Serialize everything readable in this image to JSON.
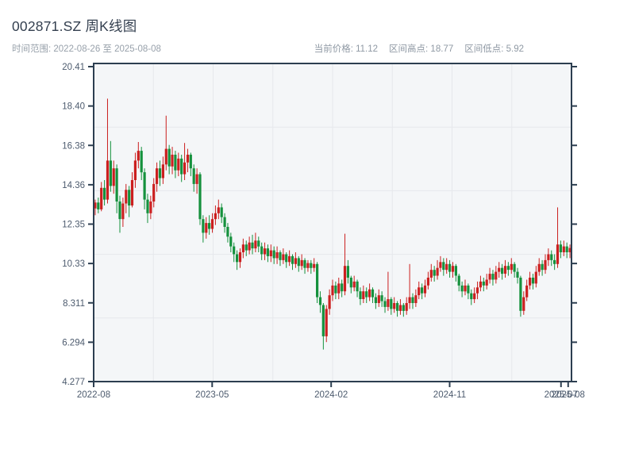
{
  "header": {
    "title": "002871.SZ 周K线图",
    "subtitle": "时间范围: 2022-08-26 至 2025-08-08",
    "stats": [
      "当前价格: 11.12",
      "区间高点: 18.77",
      "区间低点: 5.92"
    ]
  },
  "colors": {
    "up": "#cb1f1f",
    "down": "#15913d",
    "frame": "#2c3e50",
    "plot_bg": "#f4f6f8",
    "grid": "#e6e8ec",
    "tick_text": "#4d5b6e",
    "muted_text": "#98a1ab",
    "title_text": "#333f4f"
  },
  "chart_data": {
    "type": "candlestick",
    "title": "002871.SZ 周K线图",
    "symbol": "002871.SZ",
    "frequency": "weekly",
    "date_range": [
      "2022-08-26",
      "2025-08-08"
    ],
    "current_price": 11.12,
    "range_high": 18.77,
    "range_low": 5.92,
    "y_range": [
      4.277,
      20.41
    ],
    "y_ticks": [
      "20.41",
      "18.40",
      "16.38",
      "14.36",
      "12.35",
      "10.33",
      "8.311",
      "6.294",
      "4.277"
    ],
    "x_ticks": [
      {
        "label": "2022-08",
        "pos": 0.0
      },
      {
        "label": "2023-05",
        "pos": 0.248
      },
      {
        "label": "2024-02",
        "pos": 0.497
      },
      {
        "label": "2024-11",
        "pos": 0.745
      },
      {
        "label": "2025-07",
        "pos": 0.978
      },
      {
        "label": "2025-08",
        "pos": 0.993
      }
    ],
    "grid": {
      "x_divisions": 8,
      "y_divisions": 5
    },
    "legend": "red = up week (close >= open), green = down week",
    "ohlc": [
      [
        13.15,
        13.6,
        12.8,
        13.45
      ],
      [
        13.45,
        13.7,
        12.9,
        13.1
      ],
      [
        13.1,
        14.5,
        13.0,
        14.2
      ],
      [
        14.2,
        14.6,
        13.3,
        13.6
      ],
      [
        13.6,
        18.77,
        13.4,
        15.6
      ],
      [
        15.6,
        16.6,
        14.0,
        14.3
      ],
      [
        14.3,
        15.6,
        13.9,
        15.2
      ],
      [
        15.2,
        15.4,
        12.9,
        13.5
      ],
      [
        13.5,
        13.8,
        11.9,
        12.6
      ],
      [
        12.6,
        13.7,
        12.2,
        13.4
      ],
      [
        13.4,
        14.4,
        12.9,
        14.1
      ],
      [
        14.1,
        14.3,
        12.7,
        13.3
      ],
      [
        13.3,
        15.0,
        13.2,
        14.6
      ],
      [
        14.6,
        16.0,
        14.2,
        15.6
      ],
      [
        15.6,
        16.55,
        15.2,
        16.1
      ],
      [
        16.1,
        16.3,
        14.6,
        15.0
      ],
      [
        15.0,
        15.2,
        13.1,
        13.6
      ],
      [
        13.6,
        13.9,
        12.4,
        12.9
      ],
      [
        12.9,
        13.8,
        12.6,
        13.5
      ],
      [
        13.5,
        14.7,
        13.2,
        14.4
      ],
      [
        14.4,
        15.5,
        14.0,
        15.2
      ],
      [
        15.2,
        15.6,
        14.3,
        14.7
      ],
      [
        14.7,
        15.8,
        14.4,
        15.4
      ],
      [
        15.4,
        17.9,
        15.1,
        16.2
      ],
      [
        16.2,
        16.4,
        14.9,
        15.3
      ],
      [
        15.3,
        16.3,
        14.9,
        15.9
      ],
      [
        15.9,
        16.1,
        14.7,
        15.1
      ],
      [
        15.1,
        16.0,
        14.8,
        15.7
      ],
      [
        15.7,
        15.9,
        14.5,
        14.9
      ],
      [
        14.9,
        16.5,
        14.6,
        15.5
      ],
      [
        15.5,
        16.2,
        15.0,
        15.9
      ],
      [
        15.9,
        16.0,
        14.8,
        15.2
      ],
      [
        15.2,
        15.4,
        14.0,
        14.4
      ],
      [
        14.4,
        15.2,
        13.9,
        14.9
      ],
      [
        14.9,
        15.0,
        12.3,
        12.6
      ],
      [
        12.6,
        12.8,
        11.4,
        11.9
      ],
      [
        11.9,
        12.7,
        11.6,
        12.4
      ],
      [
        12.4,
        12.8,
        11.8,
        12.1
      ],
      [
        12.1,
        12.9,
        11.9,
        12.6
      ],
      [
        12.6,
        13.3,
        12.3,
        12.9
      ],
      [
        12.9,
        13.6,
        12.6,
        13.2
      ],
      [
        13.2,
        13.4,
        12.4,
        12.7
      ],
      [
        12.7,
        12.9,
        11.9,
        12.2
      ],
      [
        12.2,
        12.4,
        11.4,
        11.7
      ],
      [
        11.7,
        11.9,
        10.9,
        11.2
      ],
      [
        11.2,
        11.4,
        10.4,
        10.8
      ],
      [
        10.8,
        11.0,
        10.0,
        10.4
      ],
      [
        10.4,
        11.1,
        10.1,
        10.9
      ],
      [
        10.9,
        11.6,
        10.6,
        11.3
      ],
      [
        11.3,
        11.5,
        10.7,
        11.0
      ],
      [
        11.0,
        11.7,
        10.8,
        11.4
      ],
      [
        11.4,
        11.8,
        10.8,
        11.1
      ],
      [
        11.1,
        11.9,
        10.9,
        11.5
      ],
      [
        11.5,
        11.7,
        10.9,
        11.2
      ],
      [
        11.2,
        11.4,
        10.5,
        10.8
      ],
      [
        10.8,
        11.4,
        10.5,
        11.1
      ],
      [
        11.1,
        11.3,
        10.4,
        10.7
      ],
      [
        10.7,
        11.3,
        10.4,
        11.0
      ],
      [
        11.0,
        11.2,
        10.3,
        10.6
      ],
      [
        10.6,
        11.2,
        10.3,
        10.9
      ],
      [
        10.9,
        11.0,
        10.2,
        10.5
      ],
      [
        10.5,
        11.1,
        10.3,
        10.8
      ],
      [
        10.8,
        10.9,
        10.1,
        10.4
      ],
      [
        10.4,
        11.0,
        10.2,
        10.7
      ],
      [
        10.7,
        10.8,
        10.0,
        10.3
      ],
      [
        10.3,
        10.9,
        10.1,
        10.6
      ],
      [
        10.6,
        10.7,
        9.9,
        10.2
      ],
      [
        10.2,
        10.8,
        10.0,
        10.5
      ],
      [
        10.5,
        10.6,
        9.8,
        10.1
      ],
      [
        10.1,
        10.5,
        9.9,
        10.35
      ],
      [
        10.35,
        10.5,
        9.8,
        10.1
      ],
      [
        10.1,
        10.6,
        9.9,
        10.3
      ],
      [
        10.3,
        10.4,
        8.3,
        8.6
      ],
      [
        8.6,
        8.9,
        7.8,
        8.2
      ],
      [
        8.2,
        8.3,
        5.92,
        6.6
      ],
      [
        6.6,
        8.2,
        6.3,
        8.0
      ],
      [
        8.0,
        9.0,
        7.7,
        8.7
      ],
      [
        8.7,
        9.5,
        8.4,
        9.2
      ],
      [
        9.2,
        9.4,
        8.5,
        8.8
      ],
      [
        8.8,
        9.6,
        8.5,
        9.3
      ],
      [
        9.3,
        9.5,
        8.6,
        8.9
      ],
      [
        8.9,
        11.85,
        8.7,
        10.2
      ],
      [
        10.2,
        10.5,
        9.3,
        9.6
      ],
      [
        9.6,
        9.7,
        8.8,
        9.1
      ],
      [
        9.1,
        9.7,
        8.9,
        9.4
      ],
      [
        9.4,
        9.5,
        8.6,
        8.9
      ],
      [
        8.9,
        9.1,
        8.2,
        8.5
      ],
      [
        8.5,
        9.2,
        8.3,
        8.9
      ],
      [
        8.9,
        9.1,
        8.3,
        8.6
      ],
      [
        8.6,
        9.3,
        8.4,
        9.0
      ],
      [
        9.0,
        9.1,
        8.3,
        8.6
      ],
      [
        8.6,
        8.8,
        8.0,
        8.3
      ],
      [
        8.3,
        9.0,
        8.1,
        8.7
      ],
      [
        8.7,
        8.9,
        8.1,
        8.4
      ],
      [
        8.4,
        8.6,
        7.8,
        8.1
      ],
      [
        8.1,
        9.9,
        7.9,
        8.5
      ],
      [
        8.5,
        8.6,
        7.7,
        8.0
      ],
      [
        8.0,
        8.6,
        7.8,
        8.3
      ],
      [
        8.3,
        8.4,
        7.6,
        7.9
      ],
      [
        7.9,
        8.5,
        7.7,
        8.2
      ],
      [
        8.2,
        8.3,
        7.6,
        7.9
      ],
      [
        7.9,
        8.6,
        7.7,
        8.3
      ],
      [
        8.3,
        10.3,
        8.0,
        8.6
      ],
      [
        8.6,
        8.8,
        8.0,
        8.3
      ],
      [
        8.3,
        9.0,
        8.1,
        8.7
      ],
      [
        8.7,
        9.4,
        8.5,
        9.1
      ],
      [
        9.1,
        9.3,
        8.5,
        8.8
      ],
      [
        8.8,
        9.5,
        8.6,
        9.2
      ],
      [
        9.2,
        9.9,
        9.0,
        9.6
      ],
      [
        9.6,
        10.3,
        9.4,
        10.0
      ],
      [
        10.0,
        10.2,
        9.4,
        9.7
      ],
      [
        9.7,
        10.5,
        9.5,
        10.1
      ],
      [
        10.1,
        10.7,
        9.9,
        10.4
      ],
      [
        10.4,
        10.6,
        9.7,
        10.0
      ],
      [
        10.0,
        10.6,
        9.8,
        10.3
      ],
      [
        10.3,
        10.5,
        9.6,
        9.9
      ],
      [
        9.9,
        10.4,
        9.6,
        10.2
      ],
      [
        10.2,
        10.3,
        9.4,
        9.7
      ],
      [
        9.7,
        9.8,
        8.9,
        9.2
      ],
      [
        9.2,
        9.4,
        8.6,
        8.9
      ],
      [
        8.9,
        9.5,
        8.7,
        9.2
      ],
      [
        9.2,
        9.3,
        8.5,
        8.8
      ],
      [
        8.8,
        9.0,
        8.2,
        8.5
      ],
      [
        8.5,
        9.1,
        8.3,
        8.8
      ],
      [
        8.8,
        9.4,
        8.5,
        9.1
      ],
      [
        9.1,
        9.7,
        8.9,
        9.4
      ],
      [
        9.4,
        9.6,
        8.9,
        9.2
      ],
      [
        9.2,
        9.8,
        9.0,
        9.5
      ],
      [
        9.5,
        10.1,
        9.3,
        9.8
      ],
      [
        9.8,
        10.0,
        9.2,
        9.5
      ],
      [
        9.5,
        10.2,
        9.3,
        9.9
      ],
      [
        9.9,
        10.4,
        9.6,
        10.1
      ],
      [
        10.1,
        10.3,
        9.5,
        9.8
      ],
      [
        9.8,
        10.5,
        9.6,
        10.2
      ],
      [
        10.2,
        10.4,
        9.7,
        10.0
      ],
      [
        10.0,
        10.6,
        9.8,
        10.3
      ],
      [
        10.3,
        10.4,
        9.6,
        9.9
      ],
      [
        9.9,
        10.1,
        9.3,
        9.6
      ],
      [
        9.6,
        9.7,
        7.6,
        7.9
      ],
      [
        7.9,
        8.9,
        7.7,
        8.6
      ],
      [
        8.6,
        9.5,
        8.4,
        9.2
      ],
      [
        9.2,
        9.9,
        9.0,
        9.6
      ],
      [
        9.6,
        9.8,
        9.0,
        9.3
      ],
      [
        9.3,
        10.2,
        9.1,
        9.9
      ],
      [
        9.9,
        10.6,
        9.7,
        10.3
      ],
      [
        10.3,
        10.5,
        9.7,
        10.0
      ],
      [
        10.0,
        10.8,
        9.8,
        10.5
      ],
      [
        10.5,
        11.1,
        10.2,
        10.8
      ],
      [
        10.8,
        11.0,
        10.2,
        10.5
      ],
      [
        10.5,
        10.8,
        10.0,
        10.3
      ],
      [
        10.3,
        13.2,
        10.1,
        11.3
      ],
      [
        11.3,
        11.5,
        10.6,
        10.9
      ],
      [
        10.9,
        11.5,
        10.7,
        11.2
      ],
      [
        11.2,
        11.4,
        10.6,
        10.9
      ],
      [
        10.9,
        11.3,
        10.6,
        11.12
      ]
    ]
  }
}
